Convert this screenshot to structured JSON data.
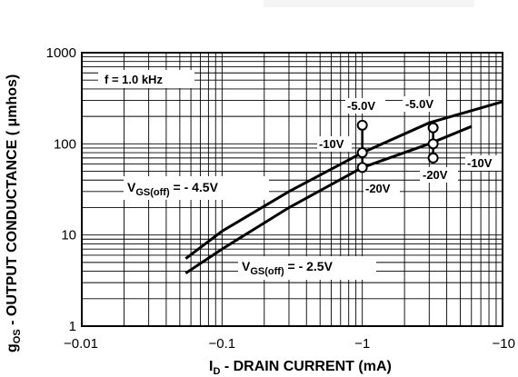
{
  "chart_data": {
    "type": "line",
    "title": "",
    "xlabel_main": "I",
    "xlabel_sub": "D",
    "xlabel_rest": " - DRAIN CURRENT (mA)",
    "ylabel_main": "g",
    "ylabel_sub": "OS",
    "ylabel_rest": " - OUTPUT CONDUCTANCE ( μmhos)",
    "x_scale": "log",
    "y_scale": "log",
    "xlim": [
      -0.01,
      -10
    ],
    "ylim": [
      1,
      1000
    ],
    "x_ticks": [
      {
        "value": -0.01,
        "label": "−0.01"
      },
      {
        "value": -0.1,
        "label": "−0.1"
      },
      {
        "value": -1,
        "label": "−1"
      },
      {
        "value": -10,
        "label": "−10"
      }
    ],
    "y_ticks": [
      {
        "value": 1,
        "label": "1"
      },
      {
        "value": 10,
        "label": "10"
      },
      {
        "value": 100,
        "label": "100"
      },
      {
        "value": 1000,
        "label": "1000"
      }
    ],
    "grid": true,
    "series": [
      {
        "x": [
          -0.055,
          -0.1,
          -0.3,
          -1,
          -3,
          -10
        ],
        "values": [
          5.5,
          11,
          30,
          80,
          170,
          290
        ]
      },
      {
        "x": [
          -0.055,
          -0.1,
          -0.3,
          -1,
          -3,
          -6
        ],
        "values": [
          3.8,
          7,
          20,
          55,
          100,
          155
        ]
      }
    ],
    "points": [
      {
        "x": -1,
        "y": 160
      },
      {
        "x": -1,
        "y": 80
      },
      {
        "x": -1,
        "y": 55
      },
      {
        "x": -3.2,
        "y": 150
      },
      {
        "x": -3.2,
        "y": 100
      },
      {
        "x": -3.2,
        "y": 70
      }
    ],
    "annotations": {
      "freq": "f = 1.0 kHz",
      "v1_main": "V",
      "v1_sub": "GS(off)",
      "v1_rest": " = - 4.5V",
      "v2_main": "V",
      "v2_sub": "GS(off)",
      "v2_rest": " = - 2.5V",
      "a_5v_left": "-5.0V",
      "a_10v_left": "-10V",
      "a_20v_left": "-20V",
      "a_5v_right": "-5.0V",
      "a_20v_right": "-20V",
      "a_10v_right": "-10V"
    }
  }
}
